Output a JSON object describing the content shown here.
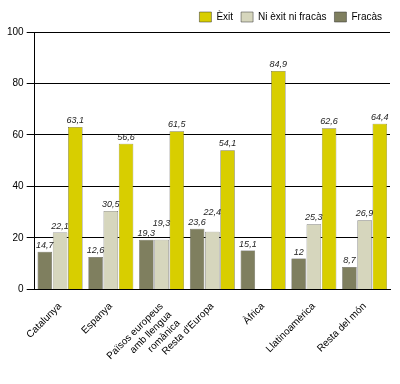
{
  "chart_data": {
    "type": "bar",
    "categories": [
      "Catalunya",
      "Espanya",
      "Països europeus amb llengua romànica",
      "Resta d'Europa",
      "Àfrica",
      "Llatinoamèrica",
      "Resta del món"
    ],
    "series": [
      {
        "name": "Fracàs",
        "color": "#7f7f5f",
        "values": [
          14.7,
          12.6,
          19.3,
          23.6,
          15.1,
          12,
          8.7
        ],
        "value_labels": [
          "14,7",
          "12,6",
          "19,3",
          "23,6",
          "15,1",
          "12",
          "8,7"
        ]
      },
      {
        "name": "Ni èxit ni fracàs",
        "color": "#d6d6bd",
        "values": [
          22.1,
          30.5,
          19.3,
          22.4,
          null,
          25.3,
          26.9
        ],
        "value_labels": [
          "22,1",
          "30,5",
          "19,3",
          "22,4",
          null,
          "25,3",
          "26,9"
        ]
      },
      {
        "name": "Èxit",
        "color": "#d8ce00",
        "values": [
          63.1,
          56.6,
          61.5,
          54.1,
          84.9,
          62.6,
          64.4
        ],
        "value_labels": [
          "63,1",
          "56,6",
          "61,5",
          "54,1",
          "84,9",
          "62,6",
          "64,4"
        ]
      }
    ],
    "ylim": [
      0,
      100
    ],
    "yticks": [
      0,
      20,
      40,
      60,
      80,
      100
    ],
    "grid": true,
    "legend": "top-right",
    "data_labels": true
  }
}
